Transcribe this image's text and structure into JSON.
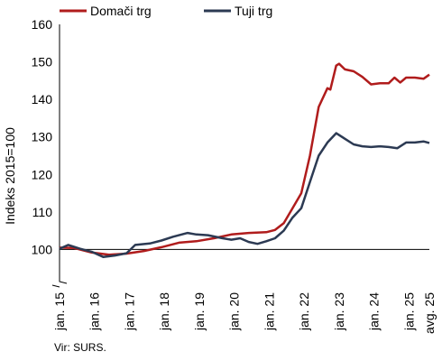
{
  "chart_data": {
    "type": "line",
    "title": "",
    "xlabel": "",
    "ylabel": "Indeks 2015=100",
    "ylim": [
      90,
      160
    ],
    "yticks": [
      100,
      110,
      120,
      130,
      140,
      150,
      160
    ],
    "ytick_labels": [
      "100",
      "110",
      "120",
      "130",
      "140",
      "150",
      "160"
    ],
    "xlim": [
      "jan. 15",
      "avg. 25"
    ],
    "xtick_labels": [
      "jan. 15",
      "jan. 16",
      "jan. 17",
      "jan. 18",
      "jan. 19",
      "jan. 20",
      "jan. 21",
      "jan. 22",
      "jan. 23",
      "jan. 24",
      "jan. 25",
      "avg. 25"
    ],
    "reference_line": 100,
    "axis_break": true,
    "grid": false,
    "legend_position": "top-left",
    "series": [
      {
        "name": "Domači trg",
        "color": "#b01c1c",
        "points": [
          [
            "2015-01",
            100.5
          ],
          [
            "2015-06",
            100.4
          ],
          [
            "2015-12",
            99.2
          ],
          [
            "2016-06",
            98.6
          ],
          [
            "2016-12",
            98.9
          ],
          [
            "2017-06",
            99.6
          ],
          [
            "2017-12",
            100.6
          ],
          [
            "2018-06",
            101.8
          ],
          [
            "2018-12",
            102.2
          ],
          [
            "2019-06",
            103.0
          ],
          [
            "2019-12",
            104.0
          ],
          [
            "2020-06",
            104.4
          ],
          [
            "2020-12",
            104.6
          ],
          [
            "2021-03",
            105.2
          ],
          [
            "2021-06",
            107.0
          ],
          [
            "2021-09",
            111.0
          ],
          [
            "2021-12",
            115.0
          ],
          [
            "2022-03",
            125.0
          ],
          [
            "2022-06",
            138.0
          ],
          [
            "2022-09",
            143.0
          ],
          [
            "2022-10",
            142.6
          ],
          [
            "2022-12",
            149.0
          ],
          [
            "2023-01",
            149.5
          ],
          [
            "2023-03",
            148.0
          ],
          [
            "2023-06",
            147.5
          ],
          [
            "2023-09",
            146.0
          ],
          [
            "2023-12",
            144.0
          ],
          [
            "2024-03",
            144.3
          ],
          [
            "2024-06",
            144.3
          ],
          [
            "2024-08",
            145.8
          ],
          [
            "2024-10",
            144.5
          ],
          [
            "2024-12",
            145.8
          ],
          [
            "2025-03",
            145.8
          ],
          [
            "2025-06",
            145.5
          ],
          [
            "2025-08",
            146.6
          ]
        ]
      },
      {
        "name": "Tuji trg",
        "color": "#2c3a53",
        "points": [
          [
            "2015-01",
            100.2
          ],
          [
            "2015-04",
            101.2
          ],
          [
            "2015-08",
            100.2
          ],
          [
            "2015-12",
            99.4
          ],
          [
            "2016-04",
            98.0
          ],
          [
            "2016-08",
            98.4
          ],
          [
            "2016-12",
            99.0
          ],
          [
            "2017-03",
            101.2
          ],
          [
            "2017-08",
            101.6
          ],
          [
            "2017-12",
            102.4
          ],
          [
            "2018-04",
            103.4
          ],
          [
            "2018-09",
            104.4
          ],
          [
            "2018-12",
            104.0
          ],
          [
            "2019-04",
            103.8
          ],
          [
            "2019-09",
            103.0
          ],
          [
            "2019-12",
            102.6
          ],
          [
            "2020-03",
            103.0
          ],
          [
            "2020-06",
            102.0
          ],
          [
            "2020-09",
            101.5
          ],
          [
            "2020-12",
            102.2
          ],
          [
            "2021-03",
            103.0
          ],
          [
            "2021-06",
            105.0
          ],
          [
            "2021-09",
            108.5
          ],
          [
            "2021-12",
            111.0
          ],
          [
            "2022-03",
            118.0
          ],
          [
            "2022-06",
            125.0
          ],
          [
            "2022-09",
            128.5
          ],
          [
            "2022-12",
            131.0
          ],
          [
            "2023-03",
            129.5
          ],
          [
            "2023-06",
            128.0
          ],
          [
            "2023-09",
            127.5
          ],
          [
            "2023-12",
            127.3
          ],
          [
            "2024-03",
            127.5
          ],
          [
            "2024-06",
            127.3
          ],
          [
            "2024-09",
            127.0
          ],
          [
            "2024-12",
            128.5
          ],
          [
            "2025-03",
            128.5
          ],
          [
            "2025-06",
            128.8
          ],
          [
            "2025-08",
            128.4
          ]
        ]
      }
    ]
  },
  "source_note": "Vir: SURS."
}
